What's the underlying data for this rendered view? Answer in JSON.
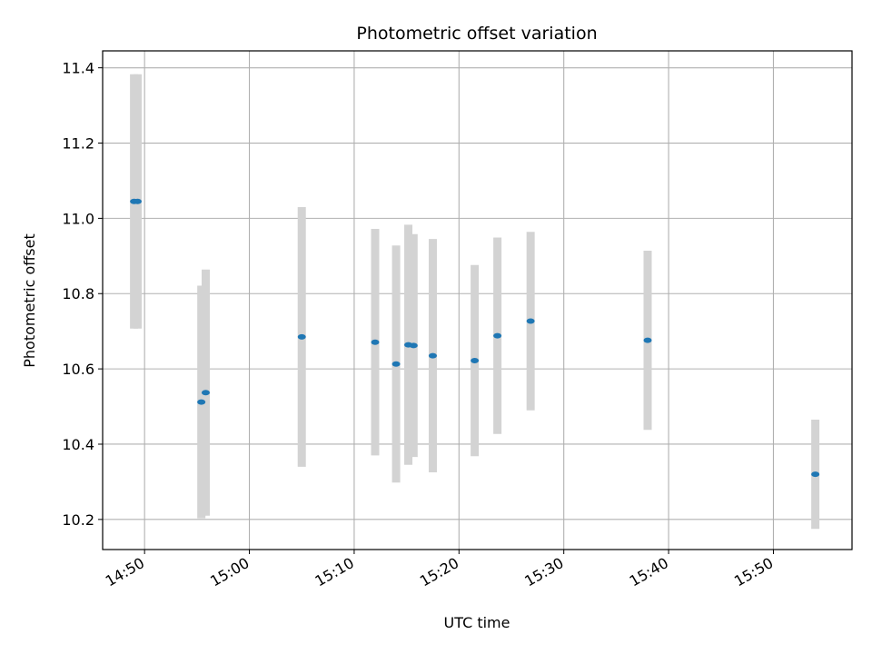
{
  "chart_data": {
    "type": "scatter",
    "title": "Photometric offset variation",
    "xlabel": "UTC time",
    "ylabel": "Photometric offset",
    "x_unit": "UTC time (HH:MM)",
    "xlim": [
      "14:46:00",
      "15:57:30"
    ],
    "ylim": [
      10.12,
      11.445
    ],
    "x_ticks": [
      "14:50",
      "15:00",
      "15:10",
      "15:20",
      "15:30",
      "15:40",
      "15:50"
    ],
    "y_ticks": [
      10.2,
      10.4,
      10.6,
      10.8,
      11.0,
      11.2,
      11.4
    ],
    "grid": true,
    "point_color": "#1f77b4",
    "errorbar_color": "#d3d3d3",
    "series": [
      {
        "points": [
          {
            "t": "14:49:00",
            "y": 11.045,
            "ymin": 10.707,
            "ymax": 11.383
          },
          {
            "t": "14:49:20",
            "y": 11.045,
            "ymin": 10.707,
            "ymax": 11.383
          },
          {
            "t": "14:55:25",
            "y": 10.512,
            "ymin": 10.203,
            "ymax": 10.821
          },
          {
            "t": "14:55:50",
            "y": 10.537,
            "ymin": 10.21,
            "ymax": 10.864
          },
          {
            "t": "15:05:00",
            "y": 10.685,
            "ymin": 10.34,
            "ymax": 11.03
          },
          {
            "t": "15:12:00",
            "y": 10.671,
            "ymin": 10.37,
            "ymax": 10.972
          },
          {
            "t": "15:14:00",
            "y": 10.613,
            "ymin": 10.298,
            "ymax": 10.928
          },
          {
            "t": "15:15:10",
            "y": 10.664,
            "ymin": 10.345,
            "ymax": 10.983
          },
          {
            "t": "15:15:40",
            "y": 10.662,
            "ymin": 10.366,
            "ymax": 10.958
          },
          {
            "t": "15:17:30",
            "y": 10.635,
            "ymin": 10.325,
            "ymax": 10.945
          },
          {
            "t": "15:21:30",
            "y": 10.622,
            "ymin": 10.368,
            "ymax": 10.876
          },
          {
            "t": "15:23:40",
            "y": 10.688,
            "ymin": 10.427,
            "ymax": 10.949
          },
          {
            "t": "15:26:50",
            "y": 10.727,
            "ymin": 10.49,
            "ymax": 10.964
          },
          {
            "t": "15:38:00",
            "y": 10.676,
            "ymin": 10.438,
            "ymax": 10.914
          },
          {
            "t": "15:54:00",
            "y": 10.32,
            "ymin": 10.175,
            "ymax": 10.465
          }
        ]
      }
    ]
  }
}
